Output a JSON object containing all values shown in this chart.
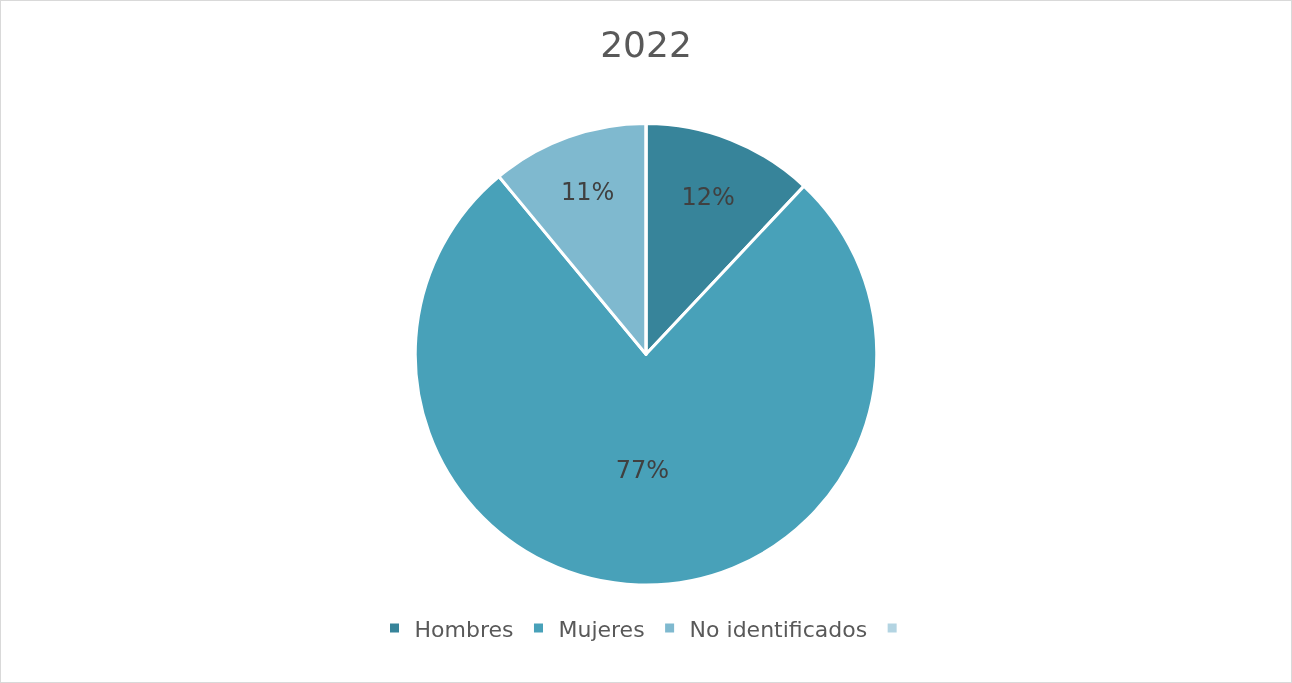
{
  "chart_data": {
    "type": "pie",
    "title": "2022",
    "categories": [
      "Hombres",
      "Mujeres",
      "No identificados",
      null
    ],
    "values": [
      12,
      77,
      11,
      0
    ],
    "colors": [
      "#37849a",
      "#48a1b9",
      "#7fb9cf",
      "#b3d4e2"
    ],
    "value_labels": [
      "12%",
      "77%",
      "11%",
      null
    ],
    "legend": "bottom"
  }
}
